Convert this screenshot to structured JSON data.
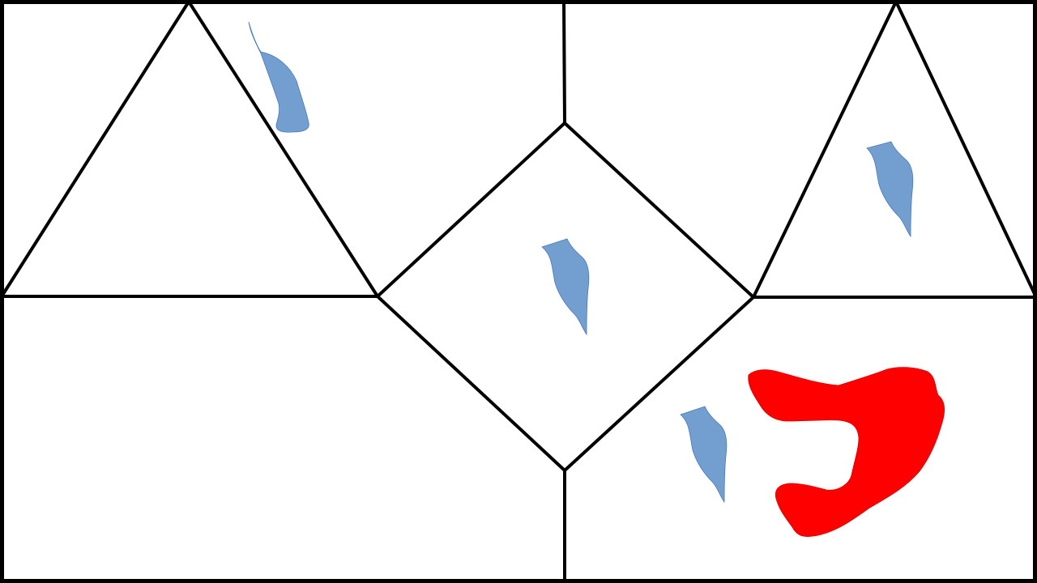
{
  "diagram": {
    "background_color": "#ffffff",
    "line_color": "#000000",
    "blue_shape_color": "#729fcf",
    "red_shape_color": "#ff0000",
    "blue_shape_count": 4,
    "red_shape_count": 1
  }
}
